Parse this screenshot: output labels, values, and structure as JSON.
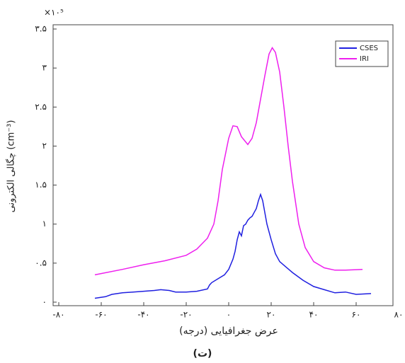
{
  "chart_data": {
    "type": "line",
    "multiplier": "×۱۰⁵",
    "x_label": "عرض جغرافیایی (درجه)",
    "y_label": "چگالی الکترونی (cm⁻³)",
    "caption": "(ت)",
    "xlim": [
      -80,
      80
    ],
    "ylim": [
      0,
      3.5
    ],
    "xticks": [
      {
        "value": -80,
        "label": "-۸۰"
      },
      {
        "value": -60,
        "label": "-۶۰"
      },
      {
        "value": -40,
        "label": "-۴۰"
      },
      {
        "value": -20,
        "label": "-۲۰"
      },
      {
        "value": 0,
        "label": "۰"
      },
      {
        "value": 20,
        "label": "۲۰"
      },
      {
        "value": 40,
        "label": "۴۰"
      },
      {
        "value": 60,
        "label": "۶۰"
      },
      {
        "value": 80,
        "label": "۸۰"
      }
    ],
    "yticks": [
      {
        "value": 0,
        "label": "۰"
      },
      {
        "value": 0.5,
        "label": "۰.۵"
      },
      {
        "value": 1,
        "label": "۱"
      },
      {
        "value": 1.5,
        "label": "۱.۵"
      },
      {
        "value": 2,
        "label": "۲"
      },
      {
        "value": 2.5,
        "label": "۲.۵"
      },
      {
        "value": 3,
        "label": "۳"
      },
      {
        "value": 3.5,
        "label": "۳.۵"
      }
    ],
    "legend": "top-right",
    "series": [
      {
        "name": "CSES",
        "color": "#1f1fe0",
        "x": [
          -63,
          -58,
          -55,
          -50,
          -45,
          -40,
          -35,
          -32,
          -28,
          -25,
          -20,
          -15,
          -10,
          -9,
          -8,
          -5,
          -2,
          0,
          2,
          3,
          4,
          5,
          6,
          7,
          8,
          9,
          10,
          11,
          12,
          13,
          14,
          15,
          16,
          17,
          18,
          20,
          22,
          24,
          27,
          30,
          35,
          40,
          45,
          50,
          55,
          60,
          67
        ],
        "values": [
          0.05,
          0.07,
          0.1,
          0.12,
          0.13,
          0.14,
          0.15,
          0.16,
          0.15,
          0.13,
          0.13,
          0.14,
          0.17,
          0.22,
          0.25,
          0.3,
          0.35,
          0.42,
          0.55,
          0.65,
          0.8,
          0.9,
          0.85,
          0.98,
          1.0,
          1.05,
          1.08,
          1.1,
          1.15,
          1.2,
          1.3,
          1.38,
          1.3,
          1.15,
          1.0,
          0.8,
          0.62,
          0.52,
          0.45,
          0.38,
          0.28,
          0.2,
          0.16,
          0.12,
          0.13,
          0.1,
          0.11
        ]
      },
      {
        "name": "IRI",
        "color": "#ee1fee",
        "x": [
          -63,
          -50,
          -40,
          -30,
          -20,
          -15,
          -10,
          -7,
          -5,
          -3,
          0,
          2,
          4,
          6,
          9,
          11,
          13,
          15,
          17,
          19,
          20.5,
          22,
          24,
          26,
          28,
          30,
          33,
          36,
          40,
          45,
          50,
          55,
          63
        ],
        "values": [
          0.35,
          0.42,
          0.48,
          0.53,
          0.6,
          0.68,
          0.82,
          1.0,
          1.3,
          1.7,
          2.1,
          2.26,
          2.25,
          2.12,
          2.02,
          2.1,
          2.3,
          2.6,
          2.9,
          3.18,
          3.26,
          3.2,
          2.95,
          2.5,
          2.0,
          1.55,
          1.0,
          0.7,
          0.52,
          0.44,
          0.41,
          0.41,
          0.42
        ]
      }
    ]
  }
}
